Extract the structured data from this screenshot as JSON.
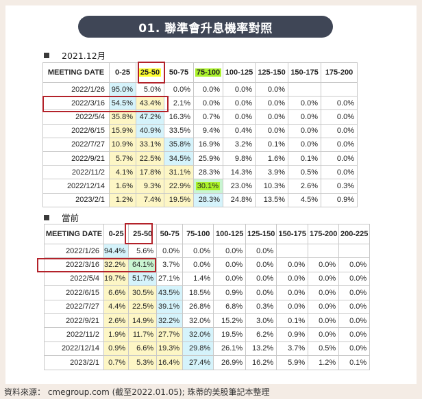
{
  "title": "01. 聯準會升息機率對照",
  "sections": [
    {
      "label": "2021.12月",
      "headers": [
        "MEETING DATE",
        "0-25",
        "25-50",
        "50-75",
        "75-100",
        "100-125",
        "125-150",
        "150-175",
        "175-200"
      ],
      "rows": [
        [
          "2022/1/26",
          "95.0%",
          "5.0%",
          "0.0%",
          "0.0%",
          "0.0%",
          "0.0%",
          "",
          ""
        ],
        [
          "2022/3/16",
          "54.5%",
          "43.4%",
          "2.1%",
          "0.0%",
          "0.0%",
          "0.0%",
          "0.0%",
          "0.0%"
        ],
        [
          "2022/5/4",
          "35.8%",
          "47.2%",
          "16.3%",
          "0.7%",
          "0.0%",
          "0.0%",
          "0.0%",
          "0.0%"
        ],
        [
          "2022/6/15",
          "15.9%",
          "40.9%",
          "33.5%",
          "9.4%",
          "0.4%",
          "0.0%",
          "0.0%",
          "0.0%"
        ],
        [
          "2022/7/27",
          "10.9%",
          "33.1%",
          "35.8%",
          "16.9%",
          "3.2%",
          "0.1%",
          "0.0%",
          "0.0%"
        ],
        [
          "2022/9/21",
          "5.7%",
          "22.5%",
          "34.5%",
          "25.9%",
          "9.8%",
          "1.6%",
          "0.1%",
          "0.0%"
        ],
        [
          "2022/11/2",
          "4.1%",
          "17.8%",
          "31.1%",
          "28.3%",
          "14.3%",
          "3.9%",
          "0.5%",
          "0.0%"
        ],
        [
          "2022/12/14",
          "1.6%",
          "9.3%",
          "22.9%",
          "30.1%",
          "23.0%",
          "10.3%",
          "2.6%",
          "0.3%"
        ],
        [
          "2023/2/1",
          "1.2%",
          "7.4%",
          "19.5%",
          "28.3%",
          "24.8%",
          "13.5%",
          "4.5%",
          "0.9%"
        ]
      ]
    },
    {
      "label": "當前",
      "headers": [
        "MEETING DATE",
        "0-25",
        "25-50",
        "50-75",
        "75-100",
        "100-125",
        "125-150",
        "150-175",
        "175-200",
        "200-225"
      ],
      "rows": [
        [
          "2022/1/26",
          "94.4%",
          "5.6%",
          "0.0%",
          "0.0%",
          "0.0%",
          "0.0%",
          "",
          "",
          ""
        ],
        [
          "2022/3/16",
          "32.2%",
          "64.1%",
          "3.7%",
          "0.0%",
          "0.0%",
          "0.0%",
          "0.0%",
          "0.0%",
          "0.0%"
        ],
        [
          "2022/5/4",
          "19.7%",
          "51.7%",
          "27.1%",
          "1.4%",
          "0.0%",
          "0.0%",
          "0.0%",
          "0.0%",
          "0.0%"
        ],
        [
          "2022/6/15",
          "6.6%",
          "30.5%",
          "43.5%",
          "18.5%",
          "0.9%",
          "0.0%",
          "0.0%",
          "0.0%",
          "0.0%"
        ],
        [
          "2022/7/27",
          "4.4%",
          "22.5%",
          "39.1%",
          "26.8%",
          "6.8%",
          "0.3%",
          "0.0%",
          "0.0%",
          "0.0%"
        ],
        [
          "2022/9/21",
          "2.6%",
          "14.9%",
          "32.2%",
          "32.0%",
          "15.2%",
          "3.0%",
          "0.1%",
          "0.0%",
          "0.0%"
        ],
        [
          "2022/11/2",
          "1.9%",
          "11.7%",
          "27.7%",
          "32.0%",
          "19.5%",
          "6.2%",
          "0.9%",
          "0.0%",
          "0.0%"
        ],
        [
          "2022/12/14",
          "0.9%",
          "6.6%",
          "19.3%",
          "29.8%",
          "26.1%",
          "13.2%",
          "3.7%",
          "0.5%",
          "0.0%"
        ],
        [
          "2023/2/1",
          "0.7%",
          "5.3%",
          "16.4%",
          "27.4%",
          "26.9%",
          "16.2%",
          "5.9%",
          "1.2%",
          "0.1%"
        ]
      ]
    }
  ],
  "footer": "資料來源： cmegroup.com (截至2022.01.05); 珠蒂的美股筆記本整理",
  "colors": {
    "title_bg": "#3f4656",
    "highlight_yellow": "#ffff2e",
    "highlight_green": "#aaf22b",
    "cell_blue": "#d5f3fb",
    "cell_yellow": "#fdf6c5",
    "cell_green": "#c9f5d2",
    "red_box": "#b3222a"
  }
}
